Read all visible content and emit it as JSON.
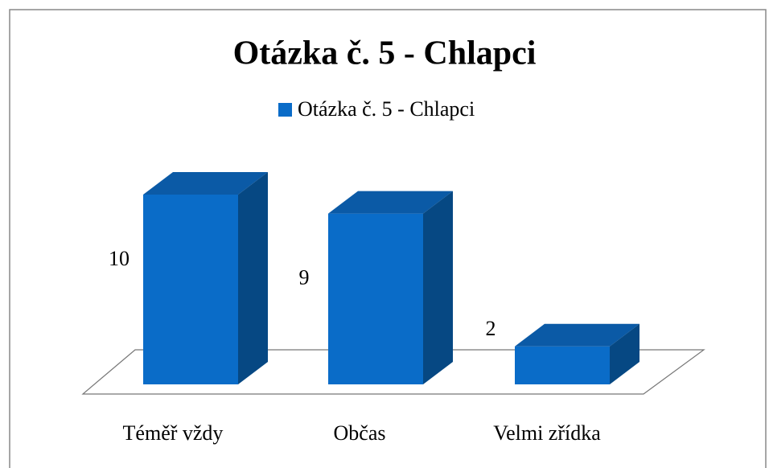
{
  "chart_data": {
    "type": "bar3d",
    "title": "Otázka č. 5 - Chlapci",
    "categories": [
      "Téměř vždy",
      "Občas",
      "Velmi zřídka"
    ],
    "series": [
      {
        "name": "Otázka č. 5 - Chlapci",
        "color": "#0a6cc8",
        "values": [
          10,
          9,
          2
        ]
      }
    ],
    "legend": "top"
  }
}
